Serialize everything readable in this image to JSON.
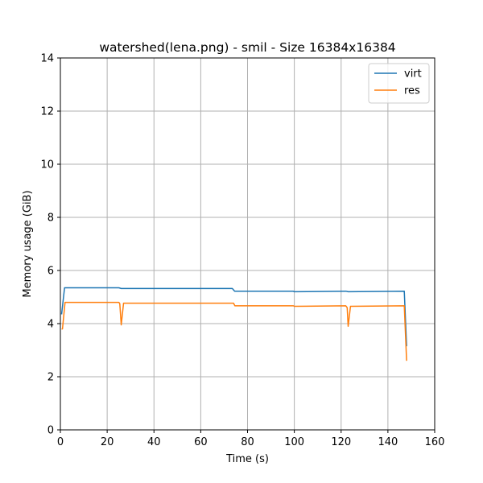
{
  "chart_data": {
    "type": "line",
    "title": "watershed(lena.png) - smil - Size 16384x16384",
    "xlabel": "Time (s)",
    "ylabel": "Memory usage (GiB)",
    "xlim": [
      0,
      160
    ],
    "ylim": [
      0,
      14
    ],
    "xticks": [
      0,
      20,
      40,
      60,
      80,
      100,
      120,
      140,
      160
    ],
    "yticks": [
      0,
      2,
      4,
      6,
      8,
      10,
      12,
      14
    ],
    "grid": true,
    "legend_position": "top-right",
    "series": [
      {
        "name": "virt",
        "color": "#1f77b4",
        "points": [
          [
            0.5,
            4.35
          ],
          [
            1.8,
            5.35
          ],
          [
            25,
            5.35
          ],
          [
            26,
            5.32
          ],
          [
            73.5,
            5.32
          ],
          [
            74.5,
            5.22
          ],
          [
            99.5,
            5.22
          ],
          [
            100,
            5.2
          ],
          [
            122,
            5.22
          ],
          [
            123,
            5.2
          ],
          [
            147,
            5.22
          ],
          [
            148,
            3.15
          ]
        ]
      },
      {
        "name": "res",
        "color": "#ff7f0e",
        "points": [
          [
            0.5,
            3.8
          ],
          [
            0.9,
            3.8
          ],
          [
            2,
            4.8
          ],
          [
            25,
            4.8
          ],
          [
            25.4,
            4.75
          ],
          [
            26,
            3.95
          ],
          [
            27,
            4.77
          ],
          [
            74,
            4.77
          ],
          [
            74.6,
            4.67
          ],
          [
            99.6,
            4.67
          ],
          [
            100,
            4.65
          ],
          [
            122,
            4.67
          ],
          [
            122.6,
            4.6
          ],
          [
            123,
            3.9
          ],
          [
            124,
            4.65
          ],
          [
            147,
            4.67
          ],
          [
            148,
            2.6
          ]
        ]
      }
    ]
  }
}
